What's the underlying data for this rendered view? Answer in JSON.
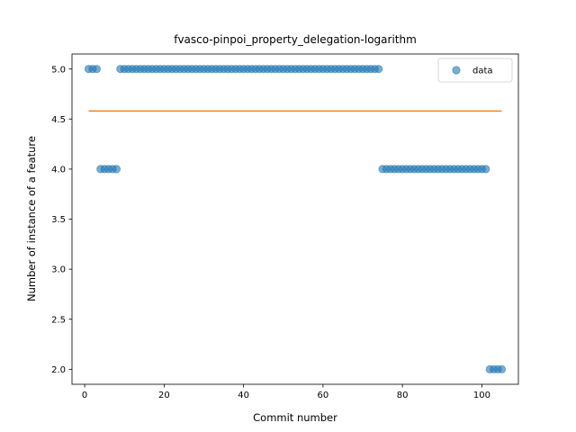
{
  "chart_data": {
    "type": "scatter",
    "title": "fvasco-pinpoi_property_delegation-logarithm",
    "xlabel": "Commit number",
    "ylabel": "Number of instance of a feature",
    "xlim": [
      -3.2,
      109.2
    ],
    "ylim": [
      1.85,
      5.15
    ],
    "x_ticks": [
      0,
      20,
      40,
      60,
      80,
      100
    ],
    "y_ticks": [
      2.0,
      2.5,
      3.0,
      3.5,
      4.0,
      4.5,
      5.0
    ],
    "x_tick_labels": [
      "0",
      "20",
      "40",
      "60",
      "80",
      "100"
    ],
    "y_tick_labels": [
      "2.0",
      "2.5",
      "3.0",
      "3.5",
      "4.0",
      "4.5",
      "5.0"
    ],
    "legend": {
      "position": "top-right",
      "entries": [
        "data"
      ]
    },
    "colors": {
      "points": "#1f77b4",
      "line": "#ff7f0e"
    },
    "series": [
      {
        "name": "data",
        "kind": "scatter",
        "points": [
          [
            1,
            5
          ],
          [
            2,
            5
          ],
          [
            3,
            5
          ],
          [
            4,
            4
          ],
          [
            5,
            4
          ],
          [
            6,
            4
          ],
          [
            7,
            4
          ],
          [
            8,
            4
          ],
          [
            9,
            5
          ],
          [
            10,
            5
          ],
          [
            11,
            5
          ],
          [
            12,
            5
          ],
          [
            13,
            5
          ],
          [
            14,
            5
          ],
          [
            15,
            5
          ],
          [
            16,
            5
          ],
          [
            17,
            5
          ],
          [
            18,
            5
          ],
          [
            19,
            5
          ],
          [
            20,
            5
          ],
          [
            21,
            5
          ],
          [
            22,
            5
          ],
          [
            23,
            5
          ],
          [
            24,
            5
          ],
          [
            25,
            5
          ],
          [
            26,
            5
          ],
          [
            27,
            5
          ],
          [
            28,
            5
          ],
          [
            29,
            5
          ],
          [
            30,
            5
          ],
          [
            31,
            5
          ],
          [
            32,
            5
          ],
          [
            33,
            5
          ],
          [
            34,
            5
          ],
          [
            35,
            5
          ],
          [
            36,
            5
          ],
          [
            37,
            5
          ],
          [
            38,
            5
          ],
          [
            39,
            5
          ],
          [
            40,
            5
          ],
          [
            41,
            5
          ],
          [
            42,
            5
          ],
          [
            43,
            5
          ],
          [
            44,
            5
          ],
          [
            45,
            5
          ],
          [
            46,
            5
          ],
          [
            47,
            5
          ],
          [
            48,
            5
          ],
          [
            49,
            5
          ],
          [
            50,
            5
          ],
          [
            51,
            5
          ],
          [
            52,
            5
          ],
          [
            53,
            5
          ],
          [
            54,
            5
          ],
          [
            55,
            5
          ],
          [
            56,
            5
          ],
          [
            57,
            5
          ],
          [
            58,
            5
          ],
          [
            59,
            5
          ],
          [
            60,
            5
          ],
          [
            61,
            5
          ],
          [
            62,
            5
          ],
          [
            63,
            5
          ],
          [
            64,
            5
          ],
          [
            65,
            5
          ],
          [
            66,
            5
          ],
          [
            67,
            5
          ],
          [
            68,
            5
          ],
          [
            69,
            5
          ],
          [
            70,
            5
          ],
          [
            71,
            5
          ],
          [
            72,
            5
          ],
          [
            73,
            5
          ],
          [
            74,
            5
          ],
          [
            75,
            4
          ],
          [
            76,
            4
          ],
          [
            77,
            4
          ],
          [
            78,
            4
          ],
          [
            79,
            4
          ],
          [
            80,
            4
          ],
          [
            81,
            4
          ],
          [
            82,
            4
          ],
          [
            83,
            4
          ],
          [
            84,
            4
          ],
          [
            85,
            4
          ],
          [
            86,
            4
          ],
          [
            87,
            4
          ],
          [
            88,
            4
          ],
          [
            89,
            4
          ],
          [
            90,
            4
          ],
          [
            91,
            4
          ],
          [
            92,
            4
          ],
          [
            93,
            4
          ],
          [
            94,
            4
          ],
          [
            95,
            4
          ],
          [
            96,
            4
          ],
          [
            97,
            4
          ],
          [
            98,
            4
          ],
          [
            99,
            4
          ],
          [
            100,
            4
          ],
          [
            101,
            4
          ],
          [
            102,
            2
          ],
          [
            103,
            2
          ],
          [
            104,
            2
          ],
          [
            105,
            2
          ]
        ]
      },
      {
        "kind": "line",
        "points": [
          [
            1,
            4.58
          ],
          [
            105,
            4.58
          ]
        ]
      }
    ]
  }
}
